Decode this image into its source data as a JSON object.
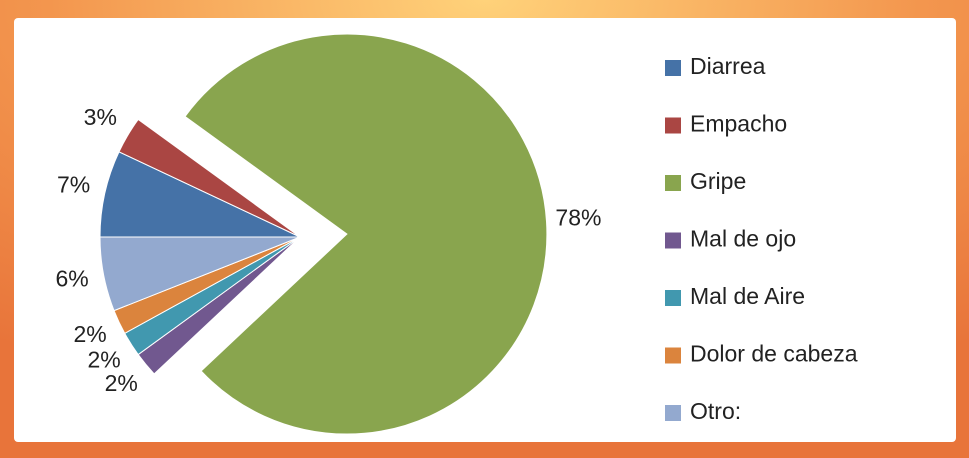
{
  "chart_data": {
    "type": "pie",
    "categories": [
      "Diarrea",
      "Empacho",
      "Gripe",
      "Mal de ojo",
      "Mal de Aire",
      "Dolor de cabeza",
      "Otro:"
    ],
    "values": [
      7,
      3,
      78,
      2,
      2,
      2,
      6
    ],
    "value_labels": [
      "7%",
      "3%",
      "78%",
      "2%",
      "2%",
      "2%",
      "6%"
    ],
    "colors": [
      "#4572a7",
      "#aa4643",
      "#89a54e",
      "#71588f",
      "#4198af",
      "#db843d",
      "#93a9cf"
    ],
    "legend": "right"
  }
}
